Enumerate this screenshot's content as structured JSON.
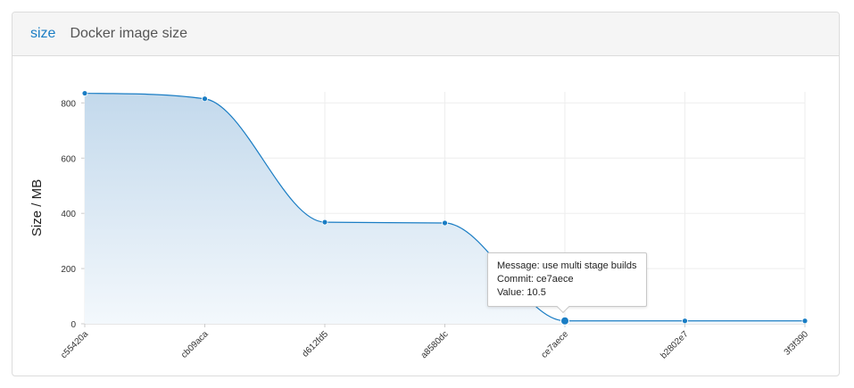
{
  "header": {
    "metric_name": "size",
    "metric_description": "Docker image size"
  },
  "colors": {
    "line": "#1a7dc4",
    "fill_top": "#c3d9ec",
    "fill_bottom": "#f3f8fc",
    "grid": "#eeeeee",
    "axis": "#cccccc",
    "header_bg": "#f5f5f5"
  },
  "tooltip": {
    "message": "Message: use multi stage builds",
    "commit": "Commit: ce7aece",
    "value": "Value: 10.5"
  },
  "chart_data": {
    "type": "area",
    "ylabel": "Size / MB",
    "xlabel": "",
    "ylim": [
      0,
      840
    ],
    "yticks": [
      0,
      200,
      400,
      600,
      800
    ],
    "categories": [
      "c55420a",
      "cb09aca",
      "d612fd5",
      "a8580dc",
      "ce7aece",
      "b2802e7",
      "3f3f390"
    ],
    "values": [
      835,
      815,
      368,
      365,
      10.5,
      10.5,
      10.5
    ],
    "highlighted_index": 4,
    "grid": true,
    "legend": "none"
  }
}
